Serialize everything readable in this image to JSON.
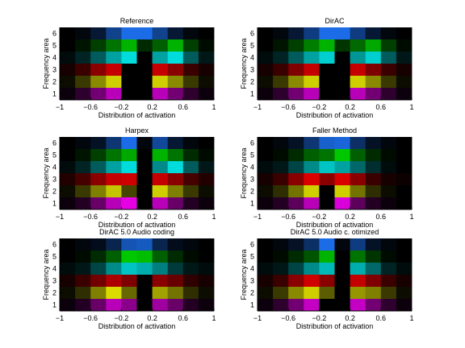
{
  "chart_data": [
    {
      "type": "heatmap",
      "title": "Reference",
      "xlabel": "Distribution of activation",
      "ylabel": "Frequency area",
      "xlim": [
        -1,
        1
      ],
      "ylim": [
        0.5,
        6.5
      ],
      "x_ticks": [
        "−1",
        "−0.6",
        "−0.2",
        "0.2",
        "0.6",
        "1"
      ],
      "y_ticks": [
        "1",
        "2",
        "3",
        "4",
        "5",
        "6"
      ],
      "x": [
        -0.9,
        -0.7,
        -0.5,
        -0.3,
        -0.1,
        0.1,
        0.3,
        0.5,
        0.7,
        0.9
      ],
      "rows": [
        {
          "band": 6,
          "color": "#1e78ff",
          "values": [
            0.0,
            0.05,
            0.2,
            0.55,
            0.9,
            0.9,
            0.55,
            0.2,
            0.05,
            0.0
          ]
        },
        {
          "band": 5,
          "color": "#00d200",
          "values": [
            0.0,
            0.1,
            0.3,
            0.55,
            0.85,
            0.2,
            0.45,
            0.85,
            0.3,
            0.05
          ]
        },
        {
          "band": 4,
          "color": "#00e6e6",
          "values": [
            0.05,
            0.15,
            0.4,
            0.7,
            0.95,
            0.0,
            0.7,
            0.95,
            0.4,
            0.1
          ]
        },
        {
          "band": 3,
          "color": "#e60000",
          "values": [
            0.1,
            0.25,
            0.6,
            0.85,
            0.0,
            0.0,
            0.85,
            0.6,
            0.25,
            0.1
          ]
        },
        {
          "band": 2,
          "color": "#e6e600",
          "values": [
            0.05,
            0.25,
            0.6,
            0.9,
            0.0,
            0.0,
            0.9,
            0.6,
            0.25,
            0.05
          ]
        },
        {
          "band": 1,
          "color": "#e600e6",
          "values": [
            0.05,
            0.2,
            0.5,
            0.8,
            0.0,
            0.0,
            0.8,
            0.5,
            0.2,
            0.05
          ]
        }
      ]
    },
    {
      "type": "heatmap",
      "title": "DirAC",
      "xlabel": "Distribution of activation",
      "ylabel": "Frequency area",
      "xlim": [
        -1,
        1
      ],
      "ylim": [
        0.5,
        6.5
      ],
      "x_ticks": [
        "−1",
        "−0.6",
        "−0.2",
        "0.2",
        "0.6",
        "1"
      ],
      "y_ticks": [
        "1",
        "2",
        "3",
        "4",
        "5",
        "6"
      ],
      "x": [
        -0.9,
        -0.7,
        -0.5,
        -0.3,
        -0.1,
        0.1,
        0.3,
        0.5,
        0.7,
        0.9
      ],
      "rows": [
        {
          "band": 6,
          "color": "#1e78ff",
          "values": [
            0.0,
            0.05,
            0.2,
            0.5,
            0.9,
            0.9,
            0.5,
            0.2,
            0.05,
            0.0
          ]
        },
        {
          "band": 5,
          "color": "#00d200",
          "values": [
            0.0,
            0.1,
            0.3,
            0.6,
            0.85,
            0.25,
            0.5,
            0.8,
            0.3,
            0.05
          ]
        },
        {
          "band": 4,
          "color": "#00e6e6",
          "values": [
            0.05,
            0.15,
            0.4,
            0.7,
            0.9,
            0.0,
            0.65,
            0.9,
            0.4,
            0.1
          ]
        },
        {
          "band": 3,
          "color": "#e60000",
          "values": [
            0.1,
            0.25,
            0.55,
            0.85,
            0.0,
            0.0,
            0.85,
            0.55,
            0.25,
            0.1
          ]
        },
        {
          "band": 2,
          "color": "#e6e600",
          "values": [
            0.05,
            0.25,
            0.6,
            0.9,
            0.0,
            0.0,
            0.9,
            0.6,
            0.25,
            0.05
          ]
        },
        {
          "band": 1,
          "color": "#e600e6",
          "values": [
            0.05,
            0.2,
            0.5,
            0.8,
            0.0,
            0.0,
            0.8,
            0.5,
            0.2,
            0.05
          ]
        }
      ]
    },
    {
      "type": "heatmap",
      "title": "Harpex",
      "xlabel": "Distribution of activation",
      "ylabel": "Frequency area",
      "xlim": [
        -1,
        1
      ],
      "ylim": [
        0.5,
        6.5
      ],
      "x_ticks": [
        "−1",
        "−0.6",
        "−0.2",
        "0.2",
        "0.6",
        "1"
      ],
      "y_ticks": [
        "1",
        "2",
        "3",
        "4",
        "5",
        "6"
      ],
      "x": [
        -0.9,
        -0.7,
        -0.5,
        -0.3,
        -0.1,
        0.1,
        0.3,
        0.5,
        0.7,
        0.9
      ],
      "rows": [
        {
          "band": 6,
          "color": "#1e78ff",
          "values": [
            0.0,
            0.05,
            0.15,
            0.45,
            0.9,
            0.05,
            0.6,
            0.2,
            0.05,
            0.0
          ]
        },
        {
          "band": 5,
          "color": "#00d200",
          "values": [
            0.0,
            0.1,
            0.3,
            0.55,
            0.8,
            0.0,
            0.85,
            0.55,
            0.2,
            0.05
          ]
        },
        {
          "band": 4,
          "color": "#00e6e6",
          "values": [
            0.05,
            0.15,
            0.4,
            0.7,
            0.95,
            0.0,
            0.6,
            0.95,
            0.4,
            0.1
          ]
        },
        {
          "band": 3,
          "color": "#e60000",
          "values": [
            0.15,
            0.3,
            0.6,
            0.85,
            0.9,
            0.0,
            0.85,
            0.6,
            0.3,
            0.15
          ]
        },
        {
          "band": 2,
          "color": "#e6e600",
          "values": [
            0.05,
            0.25,
            0.55,
            0.85,
            0.3,
            0.0,
            0.9,
            0.55,
            0.25,
            0.05
          ]
        },
        {
          "band": 1,
          "color": "#e600e6",
          "values": [
            0.05,
            0.15,
            0.45,
            0.8,
            1.0,
            0.0,
            0.8,
            0.45,
            0.15,
            0.05
          ]
        }
      ]
    },
    {
      "type": "heatmap",
      "title": "Faller Method",
      "xlabel": "Distribution of activation",
      "ylabel": "Frequency area",
      "xlim": [
        -1,
        1
      ],
      "ylim": [
        0.5,
        6.5
      ],
      "x_ticks": [
        "−1",
        "−0.6",
        "−0.2",
        "0.2",
        "0.6",
        "1"
      ],
      "y_ticks": [
        "1",
        "2",
        "3",
        "4",
        "5",
        "6"
      ],
      "x": [
        -0.9,
        -0.7,
        -0.5,
        -0.3,
        -0.1,
        0.1,
        0.3,
        0.5,
        0.7,
        0.9
      ],
      "rows": [
        {
          "band": 6,
          "color": "#1e78ff",
          "values": [
            0.0,
            0.05,
            0.15,
            0.45,
            0.8,
            0.85,
            0.4,
            0.15,
            0.05,
            0.0
          ]
        },
        {
          "band": 5,
          "color": "#00d200",
          "values": [
            0.0,
            0.05,
            0.2,
            0.45,
            0.55,
            0.95,
            0.45,
            0.2,
            0.05,
            0.0
          ]
        },
        {
          "band": 4,
          "color": "#00e6e6",
          "values": [
            0.05,
            0.1,
            0.3,
            0.6,
            0.85,
            0.7,
            0.45,
            0.2,
            0.05,
            0.0
          ]
        },
        {
          "band": 3,
          "color": "#e60000",
          "values": [
            0.1,
            0.25,
            0.6,
            0.95,
            0.6,
            0.95,
            0.6,
            0.25,
            0.1,
            0.05
          ]
        },
        {
          "band": 2,
          "color": "#e6e600",
          "values": [
            0.05,
            0.2,
            0.5,
            0.9,
            0.0,
            0.9,
            0.5,
            0.2,
            0.05,
            0.0
          ]
        },
        {
          "band": 1,
          "color": "#e600e6",
          "values": [
            0.05,
            0.15,
            0.4,
            0.8,
            0.0,
            0.95,
            0.4,
            0.15,
            0.05,
            0.0
          ]
        }
      ]
    },
    {
      "type": "heatmap",
      "title": "DirAC 5.0 Audio coding",
      "xlabel": "Distribution of activation",
      "ylabel": "Frequency area",
      "xlim": [
        -1,
        1
      ],
      "ylim": [
        0.5,
        6.5
      ],
      "x_ticks": [
        "−1",
        "−0.6",
        "−0.2",
        "0.2",
        "0.6",
        "1"
      ],
      "y_ticks": [
        "1",
        "2",
        "3",
        "4",
        "5",
        "6"
      ],
      "x": [
        -0.9,
        -0.7,
        -0.5,
        -0.3,
        -0.1,
        0.1,
        0.3,
        0.5,
        0.7,
        0.9
      ],
      "rows": [
        {
          "band": 6,
          "color": "#1e78ff",
          "values": [
            0.0,
            0.05,
            0.1,
            0.3,
            0.7,
            0.75,
            0.3,
            0.1,
            0.05,
            0.0
          ]
        },
        {
          "band": 5,
          "color": "#00d200",
          "values": [
            0.0,
            0.05,
            0.2,
            0.45,
            0.95,
            0.9,
            0.45,
            0.2,
            0.05,
            0.0
          ]
        },
        {
          "band": 4,
          "color": "#00e6e6",
          "values": [
            0.05,
            0.1,
            0.3,
            0.6,
            0.85,
            0.75,
            0.55,
            0.25,
            0.1,
            0.05
          ]
        },
        {
          "band": 3,
          "color": "#e60000",
          "values": [
            0.1,
            0.25,
            0.5,
            0.75,
            0.55,
            0.0,
            0.6,
            0.45,
            0.2,
            0.1
          ]
        },
        {
          "band": 2,
          "color": "#e6e600",
          "values": [
            0.05,
            0.2,
            0.55,
            0.95,
            0.45,
            0.0,
            0.7,
            0.5,
            0.2,
            0.05
          ]
        },
        {
          "band": 1,
          "color": "#e600e6",
          "values": [
            0.05,
            0.15,
            0.45,
            0.8,
            0.6,
            0.0,
            0.7,
            0.45,
            0.15,
            0.05
          ]
        }
      ]
    },
    {
      "type": "heatmap",
      "title": "DirAC 5.0 Audio c. otimized",
      "xlabel": "Distribution of activation",
      "ylabel": "Frequency area",
      "xlim": [
        -1,
        1
      ],
      "ylim": [
        0.5,
        6.5
      ],
      "x_ticks": [
        "−1",
        "−0.6",
        "−0.2",
        "0.2",
        "0.6",
        "1"
      ],
      "y_ticks": [
        "1",
        "2",
        "3",
        "4",
        "5",
        "6"
      ],
      "x": [
        -0.9,
        -0.7,
        -0.5,
        -0.3,
        -0.1,
        0.1,
        0.3,
        0.5,
        0.7,
        0.9
      ],
      "rows": [
        {
          "band": 6,
          "color": "#1e78ff",
          "values": [
            0.0,
            0.05,
            0.15,
            0.4,
            0.9,
            0.05,
            0.5,
            0.15,
            0.05,
            0.0
          ]
        },
        {
          "band": 5,
          "color": "#00d200",
          "values": [
            0.0,
            0.05,
            0.2,
            0.4,
            0.85,
            0.0,
            0.55,
            0.25,
            0.05,
            0.0
          ]
        },
        {
          "band": 4,
          "color": "#00e6e6",
          "values": [
            0.05,
            0.1,
            0.3,
            0.6,
            0.8,
            0.0,
            0.75,
            0.45,
            0.15,
            0.05
          ]
        },
        {
          "band": 3,
          "color": "#e60000",
          "values": [
            0.1,
            0.25,
            0.6,
            0.9,
            0.6,
            0.0,
            0.85,
            0.55,
            0.25,
            0.1
          ]
        },
        {
          "band": 2,
          "color": "#e6e600",
          "values": [
            0.05,
            0.25,
            0.6,
            0.9,
            0.4,
            0.0,
            0.65,
            0.55,
            0.25,
            0.05
          ]
        },
        {
          "band": 1,
          "color": "#e600e6",
          "values": [
            0.05,
            0.2,
            0.5,
            0.85,
            0.0,
            0.0,
            0.85,
            0.5,
            0.2,
            0.05
          ]
        }
      ]
    }
  ]
}
